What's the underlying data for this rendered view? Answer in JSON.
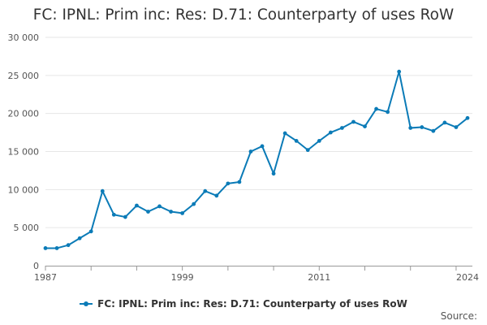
{
  "chart_data": {
    "type": "line",
    "title": "FC: IPNL: Prim inc: Res: D.71: Counterparty of uses RoW",
    "xlabel": "",
    "ylabel": "",
    "x": [
      1987,
      1988,
      1989,
      1990,
      1991,
      1992,
      1993,
      1994,
      1995,
      1996,
      1997,
      1998,
      1999,
      2000,
      2001,
      2002,
      2003,
      2004,
      2005,
      2006,
      2007,
      2008,
      2009,
      2010,
      2011,
      2012,
      2013,
      2014,
      2015,
      2016,
      2017,
      2018,
      2019,
      2020,
      2021,
      2022,
      2023,
      2024
    ],
    "series": [
      {
        "name": "FC: IPNL: Prim inc: Res: D.71: Counterparty of uses RoW",
        "color": "#0b7bb7",
        "values": [
          2300,
          2300,
          2700,
          3600,
          4500,
          9800,
          6700,
          6400,
          7900,
          7100,
          7800,
          7100,
          6900,
          8100,
          9800,
          9200,
          10800,
          11000,
          15000,
          15700,
          12100,
          17400,
          16400,
          15200,
          16400,
          17500,
          18100,
          18900,
          18300,
          20600,
          20200,
          25500,
          18100,
          18200,
          17700,
          18800,
          18200,
          19400
        ]
      }
    ],
    "ylim": [
      0,
      30000
    ],
    "yticks": [
      0,
      5000,
      10000,
      15000,
      20000,
      25000,
      30000
    ],
    "ytick_labels": [
      "0",
      "5 000",
      "10 000",
      "15 000",
      "20 000",
      "25 000",
      "30 000"
    ],
    "xtick_labels": [
      "1987",
      "1999",
      "2011",
      "2024"
    ],
    "grid": true,
    "legend": "bottom-center"
  },
  "source_label": "Source:"
}
